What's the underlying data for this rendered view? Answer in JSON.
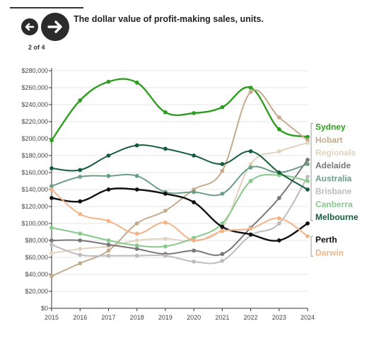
{
  "header": {
    "title": "The dollar value of profit-making sales, units.",
    "step_indicator": "2 of 4"
  },
  "icons": {
    "back": "arrow-left-icon",
    "next": "arrow-right-icon"
  },
  "chart_data": {
    "type": "line",
    "title": "The dollar value of profit-making sales, units.",
    "xlabel": "",
    "ylabel": "",
    "x": [
      2015,
      2016,
      2017,
      2018,
      2019,
      2020,
      2021,
      2022,
      2023,
      2024
    ],
    "x_tick_labels": [
      "2015",
      "2016",
      "2017",
      "2018",
      "2019",
      "2020",
      "2021",
      "2022",
      "2023",
      "2024"
    ],
    "ylim": [
      0,
      280000
    ],
    "y_ticks": [
      0,
      20000,
      40000,
      60000,
      80000,
      100000,
      120000,
      140000,
      160000,
      180000,
      200000,
      220000,
      240000,
      260000,
      280000
    ],
    "y_tick_labels": [
      "$0",
      "$20,000",
      "$40,000",
      "$60,000",
      "$80,000",
      "$100,000",
      "$120,000",
      "$140,000",
      "$160,000",
      "$180,000",
      "$200,000",
      "$220,000",
      "$240,000",
      "$260,000",
      "$280,000"
    ],
    "grid": true,
    "legend": "right, labels at line ends",
    "series": [
      {
        "name": "Sydney",
        "color": "#2e9e1f",
        "values": [
          198000,
          245000,
          267000,
          266000,
          231000,
          230000,
          237000,
          260000,
          211000,
          202000
        ]
      },
      {
        "name": "Hobart",
        "color": "#c4ab8e",
        "values": [
          38000,
          53000,
          68000,
          100000,
          115000,
          140000,
          162000,
          255000,
          225000,
          198000
        ]
      },
      {
        "name": "Regionals",
        "color": "#e2d3c0",
        "values": [
          65000,
          70000,
          73000,
          80000,
          82000,
          80000,
          95000,
          170000,
          185000,
          195000
        ]
      },
      {
        "name": "Adelaide",
        "color": "#777777",
        "values": [
          80000,
          80000,
          75000,
          70000,
          64000,
          68000,
          64000,
          95000,
          130000,
          175000
        ]
      },
      {
        "name": "Australia",
        "color": "#6b9e84",
        "values": [
          144000,
          155000,
          156000,
          156000,
          137000,
          137000,
          135000,
          166000,
          160000,
          170000
        ]
      },
      {
        "name": "Brisbane",
        "color": "#bcbcbc",
        "values": [
          75000,
          63000,
          62000,
          62000,
          62000,
          55000,
          56000,
          86000,
          100000,
          155000
        ]
      },
      {
        "name": "Canberra",
        "color": "#86c98a",
        "values": [
          95000,
          88000,
          80000,
          74000,
          73000,
          83000,
          100000,
          150000,
          157000,
          150000
        ]
      },
      {
        "name": "Melbourne",
        "color": "#155c3a",
        "values": [
          165000,
          163000,
          180000,
          192000,
          188000,
          180000,
          170000,
          185000,
          160000,
          140000
        ]
      },
      {
        "name": "Perth",
        "color": "#111111",
        "values": [
          130000,
          126000,
          140000,
          140000,
          135000,
          125000,
          96000,
          87000,
          80000,
          100000
        ]
      },
      {
        "name": "Darwin",
        "color": "#f2b58a",
        "values": [
          140000,
          111000,
          103000,
          88000,
          101000,
          80000,
          91000,
          94000,
          106000,
          85000
        ]
      }
    ]
  }
}
